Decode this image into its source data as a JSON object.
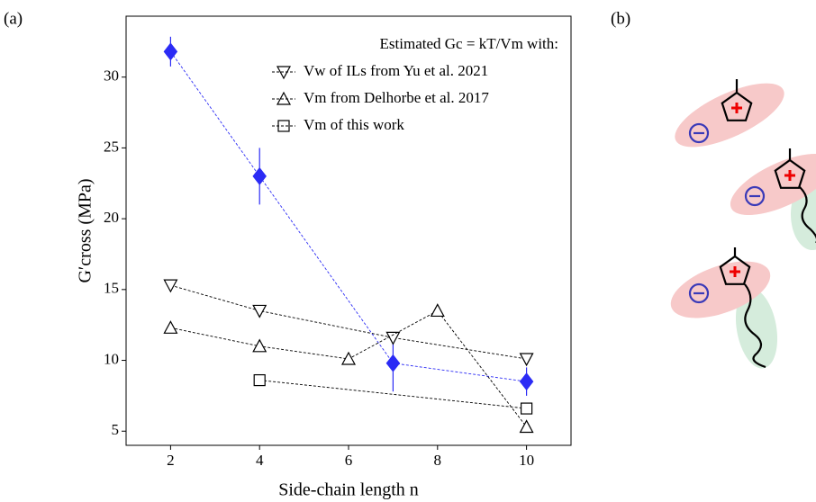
{
  "panel_labels": [
    "(a)",
    "(b)"
  ],
  "chart_data": {
    "type": "line",
    "legend_title": "Estimated Gc = kT/Vm with:",
    "x_label": "Side-chain length n",
    "y_label": "G′cross (MPa)",
    "xlim": [
      1,
      11
    ],
    "ylim": [
      4,
      34.3
    ],
    "xticks": [
      2,
      4,
      6,
      8,
      10
    ],
    "yticks": [
      5,
      10,
      15,
      20,
      25,
      30
    ],
    "grid": false,
    "legend": "upper right",
    "series": [
      {
        "color": "#2b2bf5",
        "marker": "D",
        "x": [
          2,
          4,
          7,
          10
        ],
        "values": [
          31.8,
          23.0,
          9.8,
          8.5
        ],
        "errors": [
          1.05,
          2.0,
          2.0,
          1.0
        ]
      },
      {
        "name": "Vw of ILs from Yu et al. 2021",
        "color": "#000000",
        "marker": "v",
        "x": [
          2,
          4,
          7,
          10
        ],
        "values": [
          15.3,
          13.5,
          11.6,
          10.1
        ]
      },
      {
        "name": "Vm from Delhorbe et al. 2017",
        "color": "#000000",
        "marker": "^",
        "x": [
          2,
          4,
          6,
          8,
          10
        ],
        "values": [
          12.3,
          11.0,
          10.1,
          13.5,
          5.3
        ]
      },
      {
        "name": "Vm of this work",
        "color": "#000000",
        "marker": "s",
        "x": [
          4,
          10
        ],
        "values": [
          8.6,
          6.6
        ]
      }
    ]
  }
}
